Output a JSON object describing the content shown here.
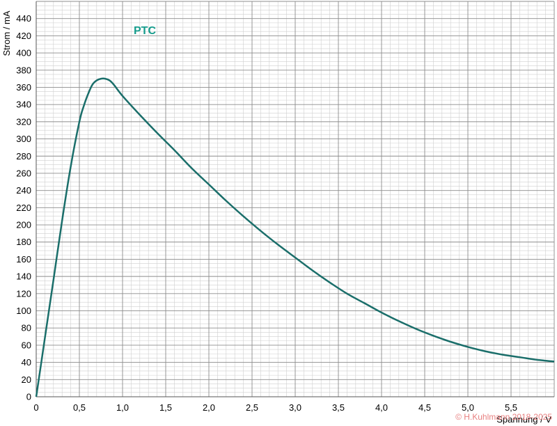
{
  "chart_data": {
    "type": "line",
    "xlabel": "Spannung / V",
    "ylabel": "Strom / mA",
    "xlim": [
      0,
      6.0
    ],
    "ylim": [
      0,
      460
    ],
    "x_tick_labels": [
      "0",
      "0,5",
      "1,0",
      "1,5",
      "2,0",
      "2,5",
      "3,0",
      "3,5",
      "4,0",
      "4,5",
      "5,0",
      "5,5"
    ],
    "y_tick_labels": [
      "0",
      "20",
      "40",
      "60",
      "80",
      "100",
      "120",
      "140",
      "160",
      "180",
      "200",
      "220",
      "240",
      "260",
      "280",
      "300",
      "320",
      "340",
      "360",
      "380",
      "400",
      "420",
      "440"
    ],
    "grid": true,
    "series": [
      {
        "name": "PTC",
        "x": [
          0,
          0.1,
          0.2,
          0.3,
          0.4,
          0.5,
          0.55,
          0.6,
          0.65,
          0.7,
          0.75,
          0.8,
          0.85,
          0.9,
          1.0,
          1.2,
          1.4,
          1.6,
          1.8,
          2.0,
          2.2,
          2.4,
          2.6,
          2.8,
          3.0,
          3.2,
          3.4,
          3.6,
          3.8,
          4.0,
          4.2,
          4.4,
          4.6,
          4.8,
          5.0,
          5.2,
          5.4,
          5.6,
          5.8,
          6.0
        ],
        "y": [
          0,
          68,
          136,
          205,
          268,
          320,
          338,
          352,
          363,
          368,
          370,
          370,
          368,
          363,
          350,
          328,
          307,
          287,
          266,
          247,
          228,
          210,
          193,
          177,
          162,
          147,
          133,
          120,
          109,
          98,
          88,
          79,
          71,
          64,
          58,
          53,
          49,
          46,
          43,
          41
        ]
      }
    ]
  },
  "series_label": "PTC",
  "copyright": "© H.Kuhlmann 2018-2025",
  "colors": {
    "curve": "#1a6e6a",
    "series_label": "#159c8c",
    "grid_major": "#8c8c8c",
    "grid_minor": "#cfcfcf",
    "copyright": "#e88080"
  }
}
